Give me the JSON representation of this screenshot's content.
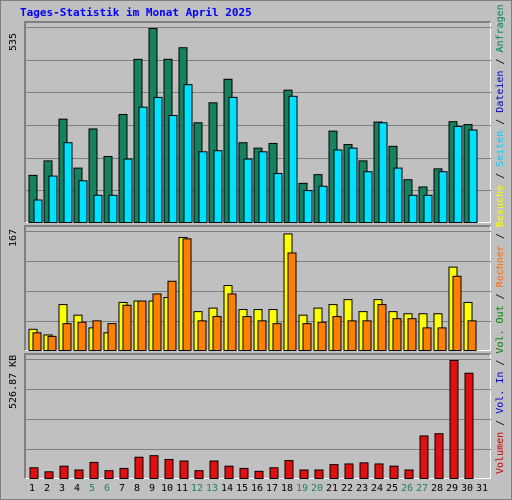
{
  "title": "Tages-Statistik im Monat April 2025",
  "right_label": [
    {
      "text": "Volumen",
      "color": "#cc0000"
    },
    {
      "text": " / ",
      "color": "#000000"
    },
    {
      "text": "Vol. In",
      "color": "#0000cc"
    },
    {
      "text": " / ",
      "color": "#000000"
    },
    {
      "text": "Vol. Out",
      "color": "#008000"
    },
    {
      "text": " / ",
      "color": "#000000"
    },
    {
      "text": "Rechner",
      "color": "#ff6600"
    },
    {
      "text": " / ",
      "color": "#000000"
    },
    {
      "text": "Besuche",
      "color": "#ffff00"
    },
    {
      "text": " / ",
      "color": "#000000"
    },
    {
      "text": "Seiten",
      "color": "#00ccff"
    },
    {
      "text": " / ",
      "color": "#000000"
    },
    {
      "text": "Dateien",
      "color": "#0000cc"
    },
    {
      "text": " / ",
      "color": "#000000"
    },
    {
      "text": "Anfragen",
      "color": "#008060"
    }
  ],
  "axis": {
    "top_max": "535",
    "mid_max": "167",
    "bottom_max": "526.87 KB"
  },
  "colors": {
    "anfragen": "#16815e",
    "seiten": "#00e0ff",
    "besuche": "#ffff00",
    "rechner": "#ff8000",
    "volumen": "#e01010",
    "weekend_day": "#208060",
    "weekday": "#000000"
  },
  "chart_data": [
    {
      "type": "bar",
      "title": "",
      "ylim": [
        0,
        535
      ],
      "categories": [
        "1",
        "2",
        "3",
        "4",
        "5",
        "6",
        "7",
        "8",
        "9",
        "10",
        "11",
        "12",
        "13",
        "14",
        "15",
        "16",
        "17",
        "18",
        "19",
        "20",
        "21",
        "22",
        "23",
        "24",
        "25",
        "26",
        "27",
        "28",
        "29",
        "30",
        "31"
      ],
      "series": [
        {
          "name": "Anfragen",
          "values": [
            130,
            170,
            285,
            150,
            258,
            182,
            298,
            450,
            535,
            450,
            482,
            275,
            330,
            395,
            220,
            205,
            218,
            365,
            108,
            132,
            252,
            215,
            170,
            277,
            210,
            118,
            98,
            148,
            278,
            270,
            0
          ]
        },
        {
          "name": "Seiten",
          "values": [
            62,
            128,
            220,
            115,
            75,
            75,
            175,
            318,
            345,
            295,
            380,
            195,
            198,
            345,
            175,
            195,
            135,
            348,
            88,
            100,
            200,
            205,
            140,
            275,
            150,
            75,
            75,
            140,
            265,
            255,
            0
          ]
        }
      ]
    },
    {
      "type": "bar",
      "title": "",
      "ylim": [
        0,
        167
      ],
      "categories": [
        "1",
        "2",
        "3",
        "4",
        "5",
        "6",
        "7",
        "8",
        "9",
        "10",
        "11",
        "12",
        "13",
        "14",
        "15",
        "16",
        "17",
        "18",
        "19",
        "20",
        "21",
        "22",
        "23",
        "24",
        "25",
        "26",
        "27",
        "28",
        "29",
        "30",
        "31"
      ],
      "series": [
        {
          "name": "Besuche",
          "values": [
            30,
            22,
            65,
            50,
            32,
            25,
            68,
            70,
            70,
            75,
            160,
            55,
            60,
            92,
            58,
            58,
            58,
            165,
            50,
            60,
            65,
            72,
            55,
            72,
            55,
            52,
            52,
            52,
            118,
            68,
            0
          ]
        },
        {
          "name": "Rechner",
          "values": [
            25,
            20,
            38,
            40,
            42,
            38,
            64,
            70,
            80,
            98,
            158,
            42,
            48,
            80,
            48,
            42,
            38,
            138,
            38,
            40,
            48,
            42,
            42,
            65,
            45,
            45,
            32,
            32,
            105,
            42,
            0
          ]
        }
      ]
    },
    {
      "type": "bar",
      "title": "",
      "ylim": [
        0,
        526.87
      ],
      "categories": [
        "1",
        "2",
        "3",
        "4",
        "5",
        "6",
        "7",
        "8",
        "9",
        "10",
        "11",
        "12",
        "13",
        "14",
        "15",
        "16",
        "17",
        "18",
        "19",
        "20",
        "21",
        "22",
        "23",
        "24",
        "25",
        "26",
        "27",
        "28",
        "29",
        "30",
        "31"
      ],
      "series": [
        {
          "name": "Volumen",
          "values": [
            48,
            30,
            55,
            38,
            72,
            35,
            45,
            95,
            102,
            85,
            78,
            35,
            78,
            55,
            45,
            32,
            48,
            80,
            38,
            38,
            62,
            65,
            70,
            65,
            55,
            38,
            190,
            200,
            526.87,
            470,
            0
          ]
        }
      ]
    }
  ],
  "days": [
    "1",
    "2",
    "3",
    "4",
    "5",
    "6",
    "7",
    "8",
    "9",
    "10",
    "11",
    "12",
    "13",
    "14",
    "15",
    "16",
    "17",
    "18",
    "19",
    "20",
    "21",
    "22",
    "23",
    "24",
    "25",
    "26",
    "27",
    "28",
    "29",
    "30",
    "31"
  ],
  "weekend_days": [
    "5",
    "6",
    "12",
    "13",
    "19",
    "20",
    "26",
    "27"
  ]
}
